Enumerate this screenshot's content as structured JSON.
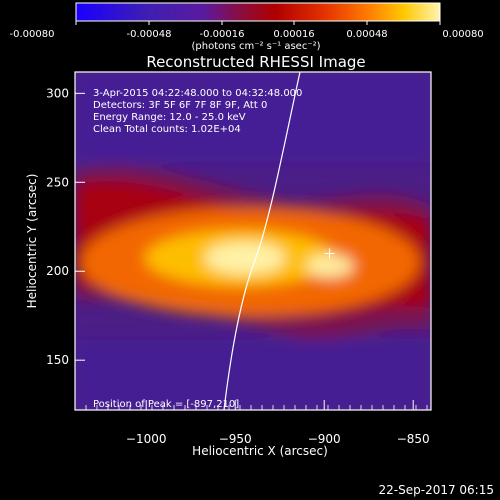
{
  "colorbar": {
    "ticks": [
      "-0.00080",
      "-0.00048",
      "-0.00016",
      "0.00016",
      "0.00048",
      "0.00080"
    ],
    "units": "(photons cm⁻² s⁻¹ asec⁻²)",
    "range": [
      -0.0008,
      0.0008
    ],
    "colors": [
      "#1a00ff",
      "#3f1fb0",
      "#5a1aa0",
      "#8a0d40",
      "#b00000",
      "#e53000",
      "#ff7a00",
      "#ffc800",
      "#fff4b0"
    ]
  },
  "plot": {
    "title": "Reconstructed RHESSI Image",
    "xlabel": "Heliocentric X (arcsec)",
    "ylabel": "Heliocentric Y (arcsec)",
    "xlim": [
      -1040,
      -840
    ],
    "ylim": [
      122,
      312
    ],
    "xticks": [
      {
        "value": -1000,
        "label": "−1000"
      },
      {
        "value": -950,
        "label": "−950"
      },
      {
        "value": -900,
        "label": "−900"
      },
      {
        "value": -850,
        "label": "−850"
      }
    ],
    "yticks": [
      {
        "value": 150,
        "label": "150"
      },
      {
        "value": 200,
        "label": "200"
      },
      {
        "value": 250,
        "label": "250"
      },
      {
        "value": 300,
        "label": "300"
      }
    ],
    "info_lines": [
      "3-Apr-2015 04:22:48.000 to 04:32:48.000",
      "Detectors: 3F 5F 6F 7F 8F 9F, Att 0",
      "Energy Range: 12.0 - 25.0 keV",
      "Clean     Total counts: 1.02E+04"
    ],
    "peak_text": "Position of Peak = [-897,210]",
    "peak": {
      "x": -897,
      "y": 210
    }
  },
  "footer": {
    "timestamp": "22-Sep-2017 06:15"
  }
}
